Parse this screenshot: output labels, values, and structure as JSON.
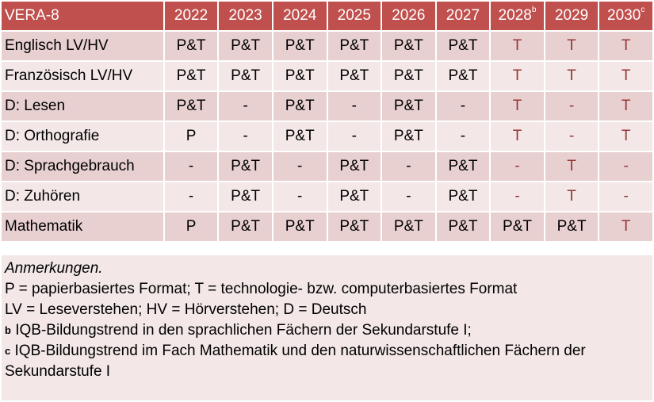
{
  "table": {
    "title": "VERA-8",
    "years": [
      {
        "label": "2022",
        "sup": ""
      },
      {
        "label": "2023",
        "sup": ""
      },
      {
        "label": "2024",
        "sup": ""
      },
      {
        "label": "2025",
        "sup": ""
      },
      {
        "label": "2026",
        "sup": ""
      },
      {
        "label": "2027",
        "sup": ""
      },
      {
        "label": "2028",
        "sup": "b"
      },
      {
        "label": "2029",
        "sup": ""
      },
      {
        "label": "2030",
        "sup": "c"
      }
    ],
    "rows": [
      {
        "subject": "Englisch LV/HV",
        "cells": [
          {
            "v": "P&T",
            "red": false
          },
          {
            "v": "P&T",
            "red": false
          },
          {
            "v": "P&T",
            "red": false
          },
          {
            "v": "P&T",
            "red": false
          },
          {
            "v": "P&T",
            "red": false
          },
          {
            "v": "P&T",
            "red": false
          },
          {
            "v": "T",
            "red": true
          },
          {
            "v": "T",
            "red": true
          },
          {
            "v": "T",
            "red": true
          }
        ]
      },
      {
        "subject": "Französisch LV/HV",
        "cells": [
          {
            "v": "P&T",
            "red": false
          },
          {
            "v": "P&T",
            "red": false
          },
          {
            "v": "P&T",
            "red": false
          },
          {
            "v": "P&T",
            "red": false
          },
          {
            "v": "P&T",
            "red": false
          },
          {
            "v": "P&T",
            "red": false
          },
          {
            "v": "T",
            "red": true
          },
          {
            "v": "T",
            "red": true
          },
          {
            "v": "T",
            "red": true
          }
        ]
      },
      {
        "subject": "D: Lesen",
        "cells": [
          {
            "v": "P&T",
            "red": false
          },
          {
            "v": "-",
            "red": false
          },
          {
            "v": "P&T",
            "red": false
          },
          {
            "v": "-",
            "red": false
          },
          {
            "v": "P&T",
            "red": false
          },
          {
            "v": "-",
            "red": false
          },
          {
            "v": "T",
            "red": true
          },
          {
            "v": "-",
            "red": true
          },
          {
            "v": "T",
            "red": true
          }
        ]
      },
      {
        "subject": "D: Orthografie",
        "cells": [
          {
            "v": "P",
            "red": false
          },
          {
            "v": "-",
            "red": false
          },
          {
            "v": "P&T",
            "red": false
          },
          {
            "v": "-",
            "red": false
          },
          {
            "v": "P&T",
            "red": false
          },
          {
            "v": "-",
            "red": false
          },
          {
            "v": "T",
            "red": true
          },
          {
            "v": "-",
            "red": true
          },
          {
            "v": "T",
            "red": true
          }
        ]
      },
      {
        "subject": "D: Sprachgebrauch",
        "cells": [
          {
            "v": "-",
            "red": false
          },
          {
            "v": "P&T",
            "red": false
          },
          {
            "v": "-",
            "red": false
          },
          {
            "v": "P&T",
            "red": false
          },
          {
            "v": "-",
            "red": false
          },
          {
            "v": "P&T",
            "red": false
          },
          {
            "v": "-",
            "red": true
          },
          {
            "v": "T",
            "red": true
          },
          {
            "v": "-",
            "red": true
          }
        ]
      },
      {
        "subject": "D: Zuhören",
        "cells": [
          {
            "v": "-",
            "red": false
          },
          {
            "v": "P&T",
            "red": false
          },
          {
            "v": "-",
            "red": false
          },
          {
            "v": "P&T",
            "red": false
          },
          {
            "v": "-",
            "red": false
          },
          {
            "v": "P&T",
            "red": false
          },
          {
            "v": "-",
            "red": true
          },
          {
            "v": "T",
            "red": true
          },
          {
            "v": "-",
            "red": true
          }
        ]
      },
      {
        "subject": "Mathematik",
        "cells": [
          {
            "v": "P",
            "red": false
          },
          {
            "v": "P&T",
            "red": false
          },
          {
            "v": "P&T",
            "red": false
          },
          {
            "v": "P&T",
            "red": false
          },
          {
            "v": "P&T",
            "red": false
          },
          {
            "v": "P&T",
            "red": false
          },
          {
            "v": "P&T",
            "red": false
          },
          {
            "v": "P&T",
            "red": false
          },
          {
            "v": "T",
            "red": true
          }
        ]
      }
    ]
  },
  "notes": {
    "heading": "Anmerkungen.",
    "line1": "P = papierbasiertes Format; T = technologie- bzw. computerbasiertes Format",
    "line2": "LV = Leseverstehen; HV = Hörverstehen; D = Deutsch",
    "b_mark": "b",
    "b_text": " IQB-Bildungstrend in den sprachlichen Fächern der Sekundarstufe I;",
    "c_mark": "c",
    "c_text": " IQB-Bildungstrend im Fach Mathematik und den naturwissenschaftlichen Fächern der Sekundarstufe I"
  },
  "colors": {
    "header": "#C0504D",
    "row_odd": "#E8D0D1",
    "row_even": "#F3E7E7",
    "highlight_text": "#963634"
  }
}
